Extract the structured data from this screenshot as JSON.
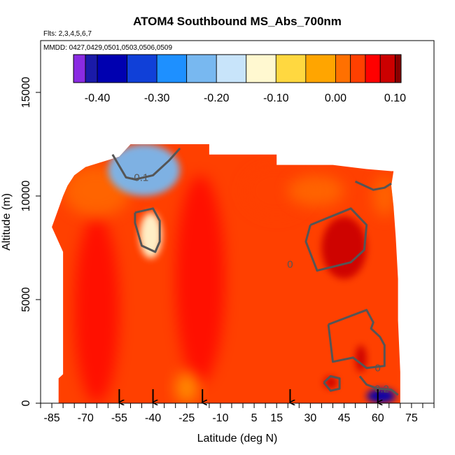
{
  "chart_data": {
    "type": "heatmap",
    "title": "ATOM4 Southbound MS_Abs_700nm",
    "subtitle_flights": "Flts: 2,3,4,5,6,7",
    "subtitle_dates": "MMDD: 0427,0429,0501,0503,0506,0509",
    "xlabel": "Latitude (deg N)",
    "ylabel": "Altitude (m)",
    "xlim": [
      -90,
      85
    ],
    "ylim": [
      0,
      17500
    ],
    "x_ticks": [
      -85,
      -70,
      -55,
      -40,
      -25,
      -10,
      5,
      15,
      30,
      45,
      60,
      75
    ],
    "x_minor_ticks": [
      -90,
      -85,
      -80,
      -75,
      -70,
      -65,
      -60,
      -55,
      -50,
      -45,
      -40,
      -35,
      -30,
      -25,
      -20,
      -15,
      -10,
      -5,
      0,
      5,
      10,
      15,
      20,
      25,
      30,
      35,
      40,
      45,
      50,
      55,
      60,
      65,
      70,
      75,
      80,
      85
    ],
    "y_ticks": [
      0,
      5000,
      10000,
      15000
    ],
    "colorbar": {
      "range": [
        -0.44,
        0.11
      ],
      "ticks": [
        -0.4,
        -0.3,
        -0.2,
        -0.1,
        0.0,
        0.1
      ],
      "tick_labels": [
        "-0.40",
        "-0.30",
        "-0.20",
        "-0.10",
        "0.00",
        "0.10"
      ],
      "boundaries": [
        -0.44,
        -0.42,
        -0.4,
        -0.35,
        -0.3,
        -0.25,
        -0.2,
        -0.15,
        -0.1,
        -0.05,
        0.0,
        0.025,
        0.05,
        0.075,
        0.1,
        0.11
      ],
      "colors": [
        "#8a2be2",
        "#1a1aa8",
        "#0000b0",
        "#1040d8",
        "#1e90ff",
        "#78b8f0",
        "#c8e4fa",
        "#fff8d0",
        "#ffd840",
        "#ffa500",
        "#ff7000",
        "#ff4000",
        "#ff0000",
        "#cc0000",
        "#880000"
      ]
    },
    "data_envelope": {
      "left_edge": [
        [
          0,
          -82
        ],
        [
          1200,
          -82
        ],
        [
          1400,
          -80
        ],
        [
          2500,
          -80
        ],
        [
          5000,
          -80
        ],
        [
          7300,
          -80
        ],
        [
          8500,
          -85
        ],
        [
          9100,
          -83
        ],
        [
          10000,
          -80
        ],
        [
          10500,
          -78
        ],
        [
          11000,
          -75
        ],
        [
          11400,
          -70
        ],
        [
          11900,
          -55
        ],
        [
          12500,
          -50
        ]
      ],
      "top_edge": [
        [
          -50,
          12500
        ],
        [
          -15,
          12500
        ],
        [
          -15,
          12000
        ],
        [
          15,
          12000
        ],
        [
          15,
          11500
        ],
        [
          40,
          11500
        ],
        [
          55,
          11300
        ],
        [
          66,
          11200
        ]
      ],
      "right_edge": [
        [
          11200,
          67
        ],
        [
          10500,
          66
        ],
        [
          9500,
          67
        ],
        [
          8000,
          68
        ],
        [
          6000,
          69
        ],
        [
          4000,
          69
        ],
        [
          1500,
          70
        ],
        [
          0,
          70
        ]
      ]
    },
    "features": [
      {
        "type": "enhanced",
        "lat": [
          35,
          55
        ],
        "alt": [
          6000,
          9000
        ],
        "value": 0.08
      },
      {
        "type": "enhanced",
        "lat": [
          50,
          55
        ],
        "alt": [
          1500,
          2800
        ],
        "value": 0.08
      },
      {
        "type": "enhanced",
        "lat": [
          36,
          42
        ],
        "alt": [
          700,
          1300
        ],
        "value": 0.09
      },
      {
        "type": "depleted",
        "lat": [
          -46,
          -36
        ],
        "alt": [
          7000,
          9200
        ],
        "value": -0.12
      },
      {
        "type": "depleted",
        "lat": [
          -60,
          -28
        ],
        "alt": [
          10000,
          12500
        ],
        "value": -0.25
      },
      {
        "type": "depleted",
        "lat": [
          55,
          68
        ],
        "alt": [
          0,
          700
        ],
        "value": -0.4
      }
    ],
    "contour_labels": [
      {
        "label": "-0.1",
        "lat": -46,
        "alt": 10900
      },
      {
        "label": "0",
        "lat": 21,
        "alt": 6700
      },
      {
        "label": "0",
        "lat": 60,
        "alt": 1700
      },
      {
        "label": "-0.2",
        "lat": 61,
        "alt": 700
      }
    ],
    "flight_markers_lat": [
      -55,
      -40,
      -18,
      21,
      60
    ]
  }
}
